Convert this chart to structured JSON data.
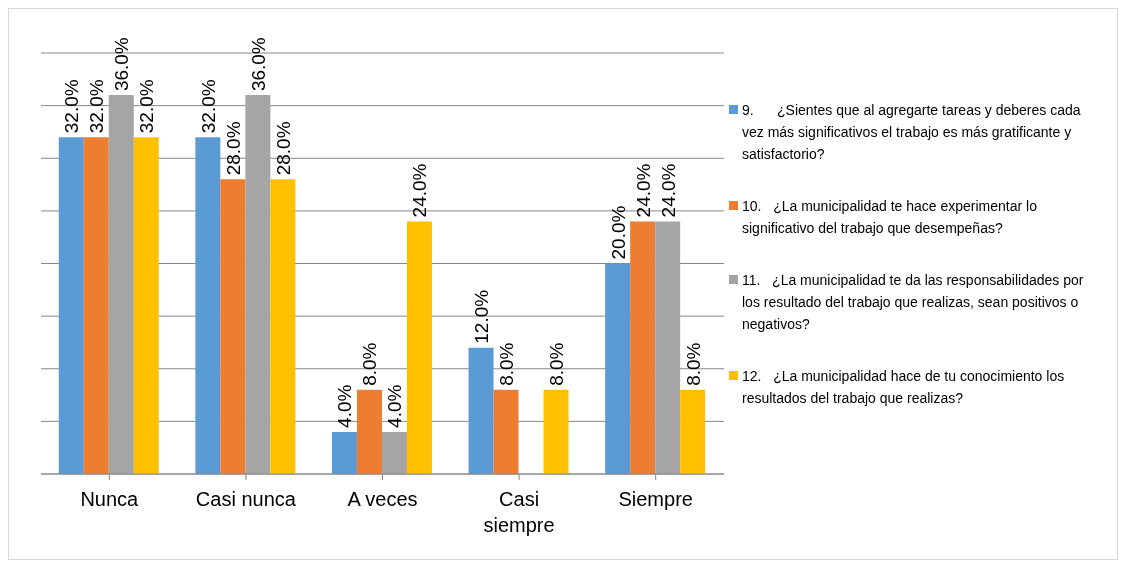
{
  "chart_data": {
    "type": "bar",
    "categories": [
      "Nunca",
      "Casi nunca",
      "A veces",
      "Casi siempre",
      "Siempre"
    ],
    "series": [
      {
        "name": "9.      ¿Sientes que al agregarte tareas y deberes cada vez más significativos el trabajo es más gratificante y satisfactorio?",
        "color": "#5b9bd5",
        "values": [
          32,
          32,
          4,
          12,
          20
        ],
        "value_labels": [
          "32.0%",
          "32.0%",
          "4.0%",
          "12.0%",
          "20.0%"
        ]
      },
      {
        "name": "10.   ¿La municipalidad te hace experimentar lo significativo del trabajo que desempeñas?",
        "color": "#ed7d31",
        "values": [
          32,
          28,
          8,
          8,
          24
        ],
        "value_labels": [
          "32.0%",
          "28.0%",
          "8.0%",
          "8.0%",
          "24.0%"
        ]
      },
      {
        "name": "11.   ¿La municipalidad te da las responsabilidades por los resultado del trabajo que realizas, sean positivos o negativos?",
        "color": "#a5a5a5",
        "values": [
          36,
          36,
          4,
          0,
          24
        ],
        "value_labels": [
          "36.0%",
          "36.0%",
          "4.0%",
          null,
          "24.0%"
        ]
      },
      {
        "name": "12.   ¿La municipalidad hace de tu conocimiento los resultados del trabajo que realizas?",
        "color": "#ffc000",
        "values": [
          32,
          28,
          24,
          8,
          8
        ],
        "value_labels": [
          "32.0%",
          "28.0%",
          "24.0%",
          "8.0%",
          "8.0%"
        ]
      }
    ],
    "ylim": [
      0,
      40
    ],
    "yticks": [
      {
        "value": 0,
        "label": null
      },
      {
        "value": 5,
        "label": null
      },
      {
        "value": 10,
        "label": null
      },
      {
        "value": 15,
        "label": null
      },
      {
        "value": 20,
        "label": null
      },
      {
        "value": 25,
        "label": null
      },
      {
        "value": 30,
        "label": null
      },
      {
        "value": 35,
        "label": null
      },
      {
        "value": 40,
        "label": null
      }
    ],
    "grid": "y",
    "legend": "right",
    "tick_labels": "x"
  }
}
